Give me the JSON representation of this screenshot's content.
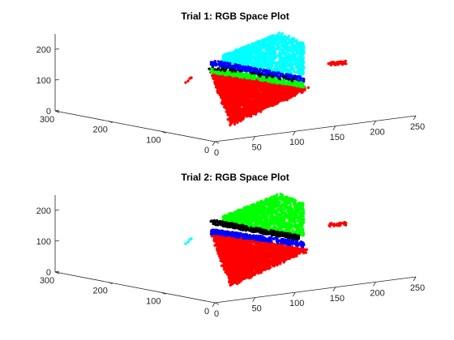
{
  "chart_data": [
    {
      "type": "scatter",
      "projection": "3d",
      "title": "Trial 1: RGB Space Plot",
      "xlabel": "",
      "ylabel": "",
      "zlabel": "",
      "xlim": [
        0,
        250
      ],
      "ylim": [
        0,
        300
      ],
      "zlim": [
        0,
        250
      ],
      "x_ticks": [
        "0",
        "50",
        "100",
        "150",
        "200",
        "250"
      ],
      "y_ticks": [
        "0",
        "100",
        "200",
        "300"
      ],
      "z_ticks": [
        "0",
        "100",
        "200"
      ],
      "grid": false,
      "series": [
        {
          "color": "#ff0000",
          "region": "red-base",
          "approx_points": [
            [
              0,
              220,
              50
            ],
            [
              50,
              150,
              30
            ],
            [
              150,
              100,
              60
            ],
            [
              230,
              80,
              80
            ],
            [
              100,
              200,
              110
            ]
          ]
        },
        {
          "color": "#00ff00",
          "region": "green-band",
          "approx_points": [
            [
              30,
              230,
              110
            ],
            [
              150,
              150,
              110
            ],
            [
              230,
              100,
              105
            ]
          ]
        },
        {
          "color": "#0000ff",
          "region": "blue-band",
          "approx_points": [
            [
              20,
              240,
              135
            ],
            [
              120,
              180,
              130
            ],
            [
              210,
              130,
              120
            ]
          ]
        },
        {
          "color": "#00ffff",
          "region": "cyan-top",
          "approx_points": [
            [
              40,
              230,
              160
            ],
            [
              120,
              200,
              235
            ],
            [
              200,
              150,
              175
            ]
          ]
        },
        {
          "color": "#000000",
          "region": "black-band",
          "approx_points": [
            [
              10,
              250,
              120
            ],
            [
              200,
              140,
              100
            ]
          ]
        },
        {
          "color": "#ff0000",
          "region": "outlier-cluster",
          "approx_points": [
            [
              240,
              40,
              150
            ]
          ]
        },
        {
          "color": "#ff0000",
          "region": "outlier-left",
          "approx_points": [
            [
              0,
              300,
              120
            ]
          ]
        }
      ]
    },
    {
      "type": "scatter",
      "projection": "3d",
      "title": "Trial 2: RGB Space Plot",
      "xlabel": "",
      "ylabel": "",
      "zlabel": "",
      "xlim": [
        0,
        250
      ],
      "ylim": [
        0,
        300
      ],
      "zlim": [
        0,
        250
      ],
      "x_ticks": [
        "0",
        "50",
        "100",
        "150",
        "200",
        "250"
      ],
      "y_ticks": [
        "0",
        "100",
        "200",
        "300"
      ],
      "z_ticks": [
        "0",
        "100",
        "200"
      ],
      "grid": false,
      "series": [
        {
          "color": "#ff0000",
          "region": "red-base",
          "approx_points": [
            [
              0,
              220,
              50
            ],
            [
              50,
              150,
              30
            ],
            [
              150,
              100,
              60
            ],
            [
              230,
              80,
              80
            ],
            [
              100,
              200,
              110
            ]
          ]
        },
        {
          "color": "#0000ff",
          "region": "blue-band",
          "approx_points": [
            [
              20,
              240,
              110
            ],
            [
              150,
              150,
              110
            ],
            [
              230,
              100,
              105
            ]
          ]
        },
        {
          "color": "#000000",
          "region": "black-band",
          "approx_points": [
            [
              20,
              240,
              135
            ],
            [
              120,
              180,
              130
            ],
            [
              210,
              130,
              120
            ]
          ]
        },
        {
          "color": "#00ff00",
          "region": "green-top",
          "approx_points": [
            [
              40,
              230,
              160
            ],
            [
              120,
              200,
              235
            ],
            [
              200,
              150,
              175
            ]
          ]
        },
        {
          "color": "#00ffff",
          "region": "cyan-outliers",
          "approx_points": [
            [
              0,
              300,
              120
            ]
          ]
        },
        {
          "color": "#ff0000",
          "region": "outlier-cluster",
          "approx_points": [
            [
              240,
              40,
              150
            ]
          ]
        }
      ]
    }
  ]
}
